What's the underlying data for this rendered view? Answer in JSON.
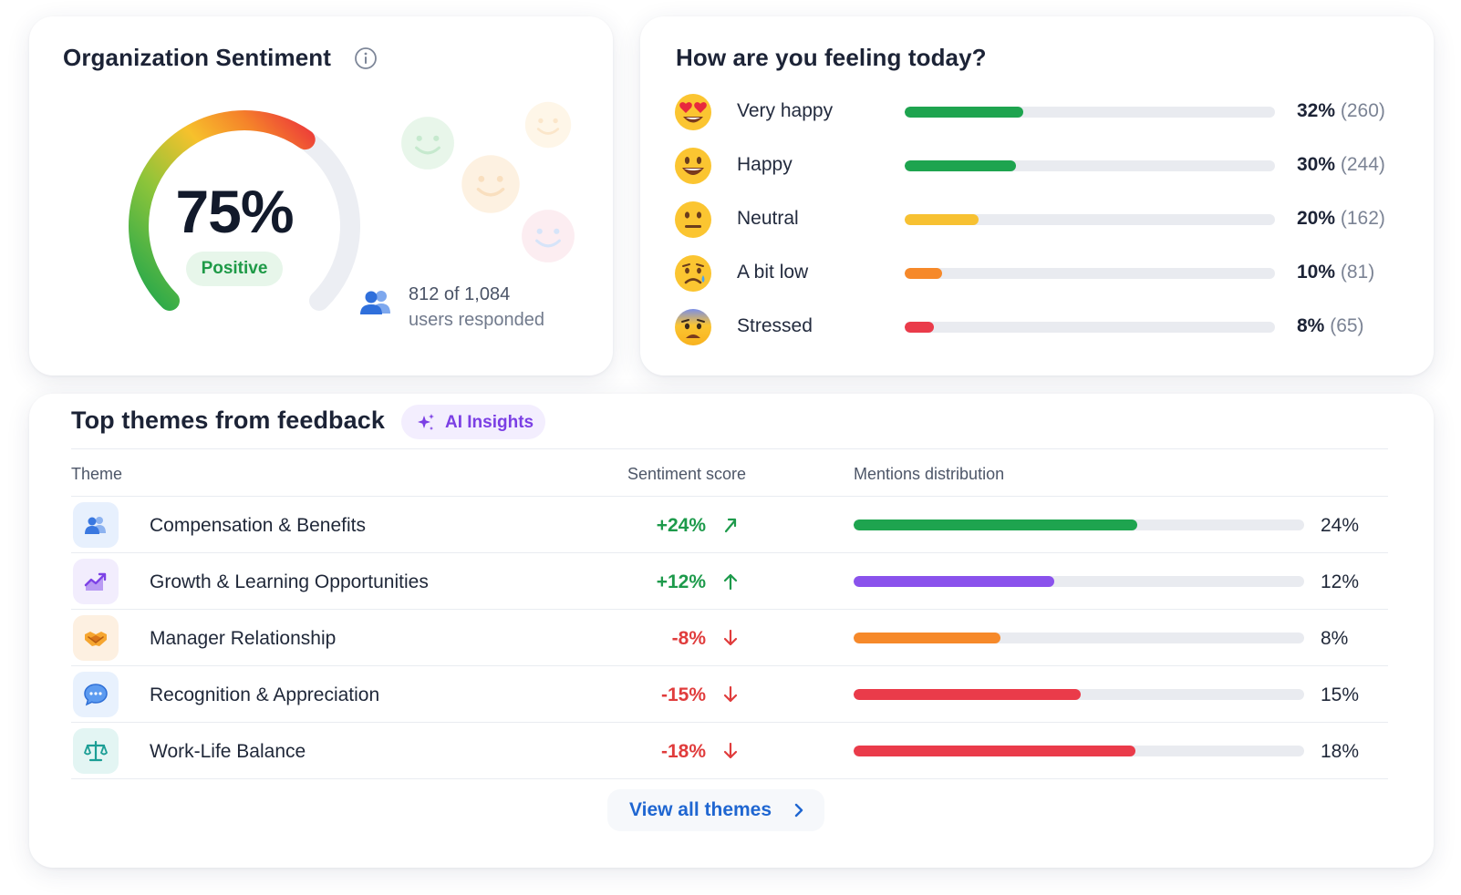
{
  "sentiment": {
    "title": "Organization Sentiment",
    "score_percent": 75,
    "score_text": "75%",
    "badge": "Positive",
    "responded_count": "812 of 1,084",
    "responded_label": "users responded",
    "info_icon": "info-icon",
    "users_icon": "users-icon",
    "colors": {
      "green": "#22a652",
      "yellow": "#f6c12c",
      "orange": "#f5832a",
      "red": "#ec3a3a",
      "track": "#eceef3"
    }
  },
  "feeling": {
    "title": "How are you feeling today?",
    "rows": [
      {
        "label": "Very happy",
        "pct_text": "32%",
        "count_text": "(260)",
        "value": 0.32,
        "color": "#1ea44f",
        "emoji": "heart-eyes-emoji"
      },
      {
        "label": "Happy",
        "pct_text": "30%",
        "count_text": "(244)",
        "value": 0.3,
        "color": "#1ea44f",
        "emoji": "grinning-emoji"
      },
      {
        "label": "Neutral",
        "pct_text": "20%",
        "count_text": "(162)",
        "value": 0.2,
        "color": "#f7c132",
        "emoji": "neutral-face-emoji"
      },
      {
        "label": "A bit low",
        "pct_text": "10%",
        "count_text": "(81)",
        "value": 0.1,
        "color": "#f6892a",
        "emoji": "sad-face-emoji"
      },
      {
        "label": "Stressed",
        "pct_text": "8%",
        "count_text": "(65)",
        "value": 0.08,
        "color": "#ea3b4a",
        "emoji": "anxious-face-emoji"
      }
    ]
  },
  "themes": {
    "title": "Top themes from feedback",
    "ai_badge": "AI Insights",
    "columns": {
      "theme": "Theme",
      "score": "Sentiment score",
      "mentions": "Mentions distribution"
    },
    "rows": [
      {
        "label": "Compensation & Benefits",
        "score": "+24%",
        "direction": "up",
        "score_color": "#1d9a4b",
        "pct_text": "24%",
        "value": 0.63,
        "bar_color": "#1ea44f",
        "icon": "people-icon",
        "icon_bg": "#e7f0fd",
        "icon_color": "#3a78e0"
      },
      {
        "label": "Growth & Learning Opportunities",
        "score": "+12%",
        "direction": "up",
        "score_color": "#1d9a4b",
        "pct_text": "12%",
        "value": 0.445,
        "bar_color": "#8a52ec",
        "icon": "growth-chart-icon",
        "icon_bg": "#f2edfd",
        "icon_color": "#8a52ec"
      },
      {
        "label": "Manager Relationship",
        "score": "-8%",
        "direction": "down",
        "score_color": "#e03c3c",
        "pct_text": "8%",
        "value": 0.325,
        "bar_color": "#f6892a",
        "icon": "handshake-icon",
        "icon_bg": "#fdf0e1",
        "icon_color": "#f39c2c"
      },
      {
        "label": "Recognition & Appreciation",
        "score": "-15%",
        "direction": "down",
        "score_color": "#e03c3c",
        "pct_text": "15%",
        "value": 0.505,
        "bar_color": "#ea3b4a",
        "icon": "chat-bubble-icon",
        "icon_bg": "#e8f1fd",
        "icon_color": "#3a82e6"
      },
      {
        "label": "Work-Life Balance",
        "score": "-18%",
        "direction": "down",
        "score_color": "#e03c3c",
        "pct_text": "18%",
        "value": 0.625,
        "bar_color": "#ea3b4a",
        "icon": "balance-scale-icon",
        "icon_bg": "#e3f5f3",
        "icon_color": "#1b9e95"
      }
    ],
    "view_all": "View all themes"
  }
}
